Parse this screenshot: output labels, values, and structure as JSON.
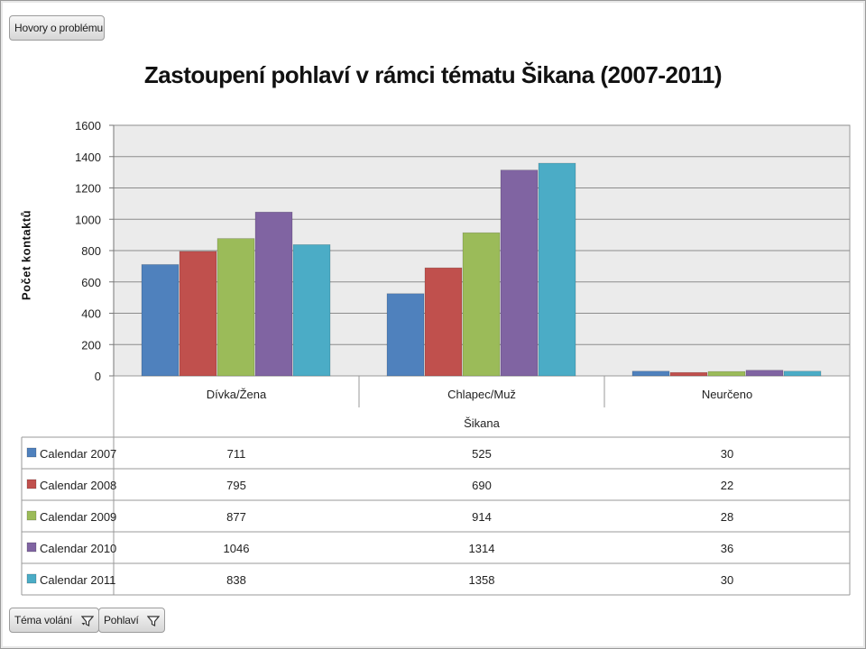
{
  "header": {
    "filter_button_label": "Hovory o problému"
  },
  "footer": {
    "field_buttons": [
      {
        "label": "Téma volání",
        "icon": "filter-icon"
      },
      {
        "label": "Pohlaví",
        "icon": "filter-icon"
      }
    ]
  },
  "colors": {
    "Calendar 2007": "#4f81bd",
    "Calendar 2008": "#c0504d",
    "Calendar 2009": "#9bbb59",
    "Calendar 2010": "#8064a2",
    "Calendar 2011": "#4bacc6",
    "plot_background": "#ebebeb",
    "gridline": "#8c8c8c"
  },
  "chart_data": {
    "type": "bar",
    "title": "Zastoupení pohlaví v rámci tématu Šikana (2007-2011)",
    "xlabel": "Šikana",
    "ylabel": "Počet kontaktů",
    "ylim": [
      0,
      1600
    ],
    "yticks": [
      0,
      200,
      400,
      600,
      800,
      1000,
      1200,
      1400,
      1600
    ],
    "grid": true,
    "legend": "data-table",
    "categories": [
      "Dívka/Žena",
      "Chlapec/Muž",
      "Neurčeno"
    ],
    "series": [
      {
        "name": "Calendar 2007",
        "values": [
          711,
          525,
          30
        ]
      },
      {
        "name": "Calendar 2008",
        "values": [
          795,
          690,
          22
        ]
      },
      {
        "name": "Calendar 2009",
        "values": [
          877,
          914,
          28
        ]
      },
      {
        "name": "Calendar 2010",
        "values": [
          1046,
          1314,
          36
        ]
      },
      {
        "name": "Calendar 2011",
        "values": [
          838,
          1358,
          30
        ]
      }
    ]
  }
}
